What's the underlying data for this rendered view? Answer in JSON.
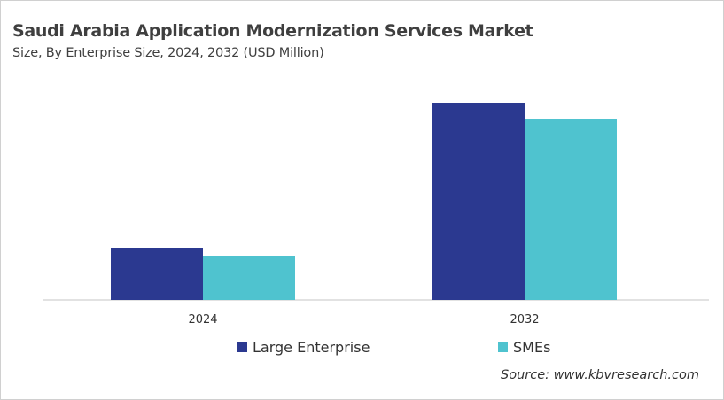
{
  "chart_data": {
    "type": "bar",
    "title": "Saudi Arabia Application Modernization Services Market",
    "subtitle": "Size, By Enterprise Size, 2024, 2032 (USD Million)",
    "categories": [
      "2024",
      "2032"
    ],
    "series": [
      {
        "name": "Large Enterprise",
        "values": [
          59,
          223
        ],
        "color": "#2b3990"
      },
      {
        "name": "SMEs",
        "values": [
          50,
          205
        ],
        "color": "#4fc3cf"
      }
    ],
    "ylim": [
      0,
      240
    ],
    "y_axis_labels_shown": false,
    "grid": false,
    "legend_placement": "bottom",
    "source": "Source: www.kbvresearch.com"
  }
}
